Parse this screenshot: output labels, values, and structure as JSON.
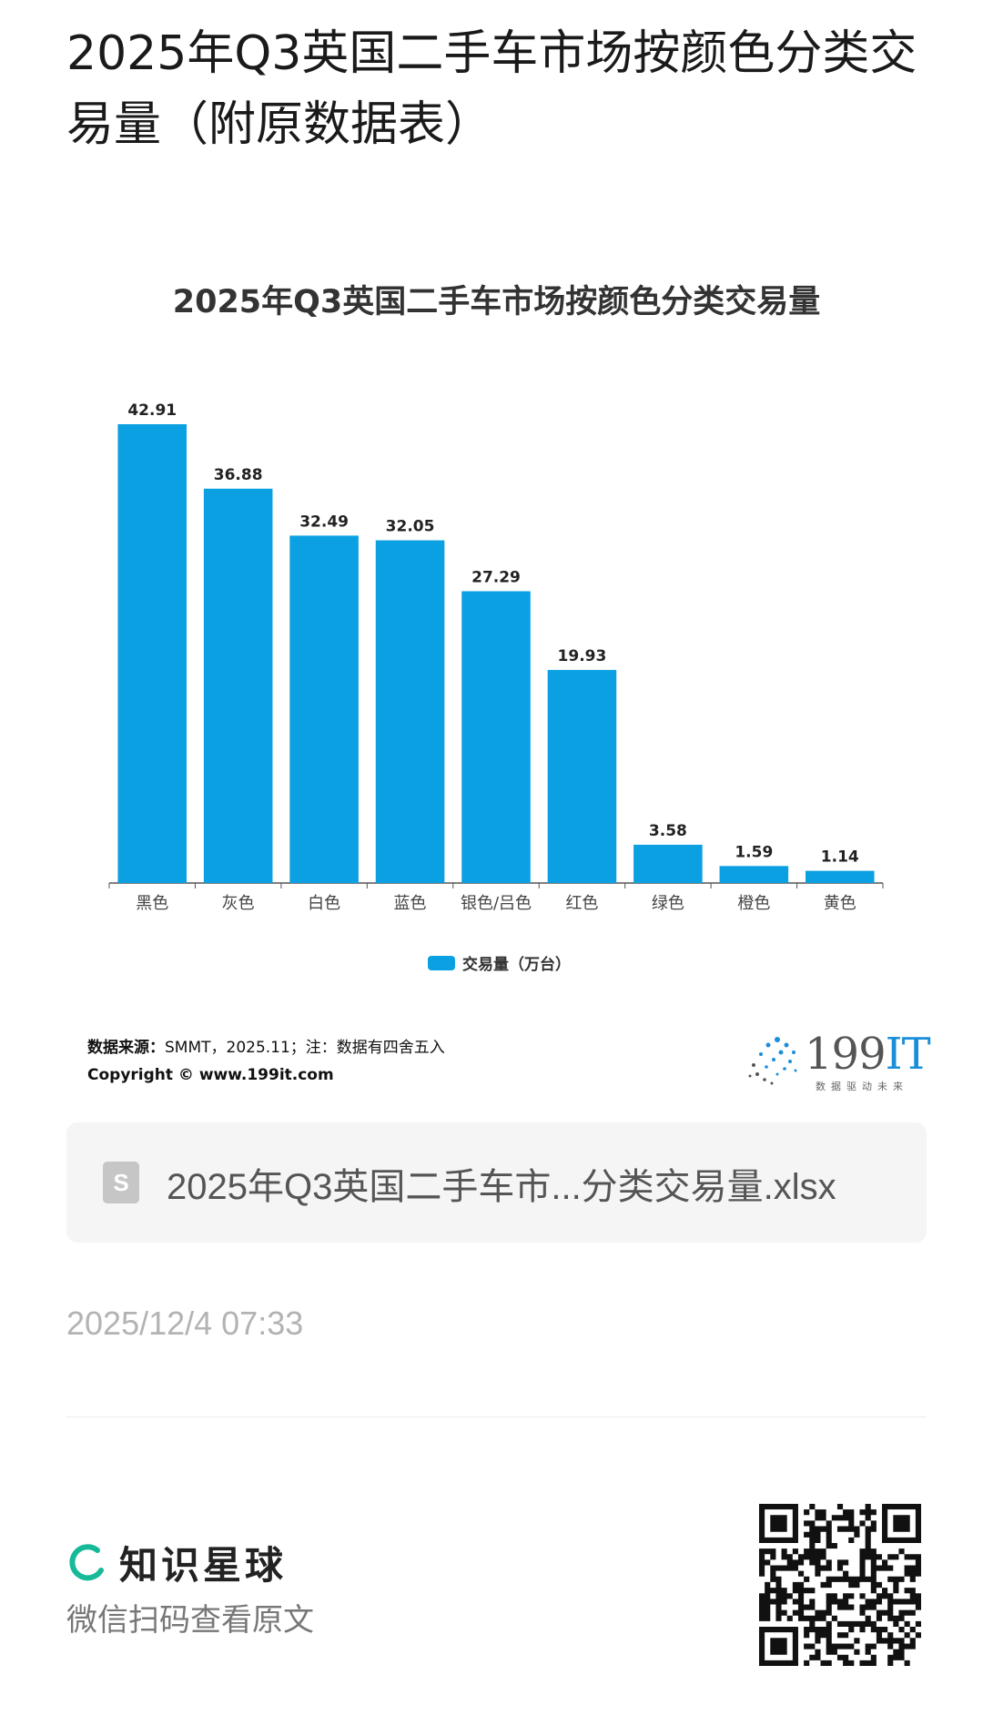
{
  "page": {
    "title": "2025年Q3英国二手车市场按颜色分类交易量（附原数据表）"
  },
  "chart_data": {
    "type": "bar",
    "title": "2025年Q3英国二手车市场按颜色分类交易量",
    "categories": [
      "黑色",
      "灰色",
      "白色",
      "蓝色",
      "银色/吕色",
      "红色",
      "绿色",
      "橙色",
      "黄色"
    ],
    "series": [
      {
        "name": "交易量（万台）",
        "values": [
          42.91,
          36.88,
          32.49,
          32.05,
          27.29,
          19.93,
          3.58,
          1.59,
          1.14
        ]
      }
    ],
    "ylim": [
      0,
      45
    ],
    "grid": false,
    "legend": "bottom",
    "color": "#0aa0e2"
  },
  "source": {
    "label": "数据来源：",
    "text": "SMMT，2025.11；注：数据有四舍五入",
    "copyright": "Copyright © www.199it.com"
  },
  "logo": {
    "number": "199",
    "it": "IT",
    "slogan": "数据驱动未来"
  },
  "file": {
    "icon": "spreadsheet-file-icon",
    "icon_letter": "S",
    "name": "2025年Q3英国二手车市...分类交易量.xlsx"
  },
  "timestamp": "2025/12/4 07:33",
  "footer": {
    "brand_name": "知识星球",
    "scan_text": "微信扫码查看原文",
    "brand_color": "#16b998"
  }
}
